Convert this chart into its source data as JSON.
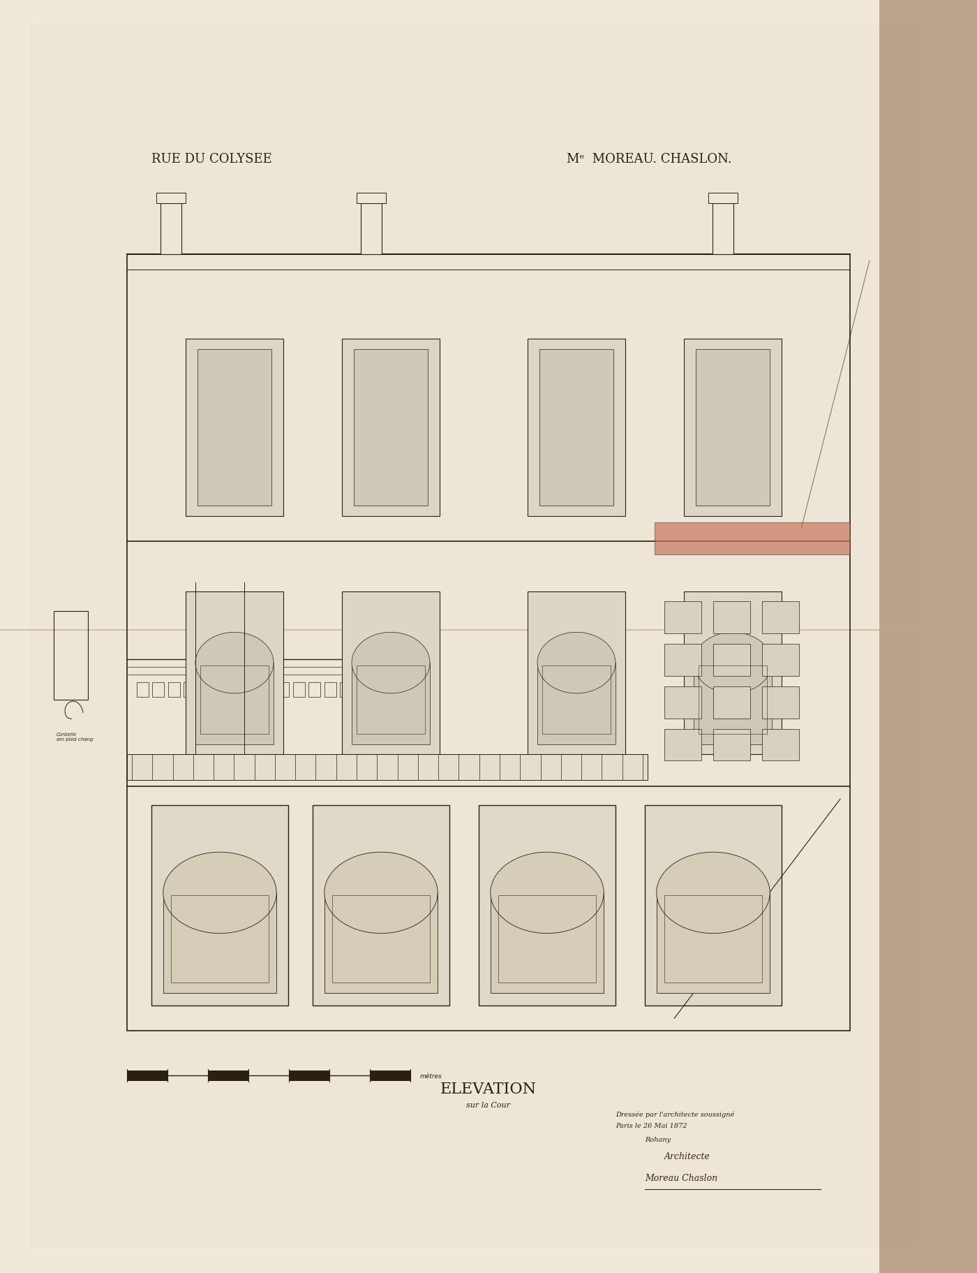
{
  "bg_color": "#f0e8d8",
  "paper_color": "#ede5d5",
  "line_color": "#2a1f10",
  "faint_line": "#8a7a65",
  "red_line": "#c07060",
  "title_left": "RUE DU COLYSEE",
  "title_right": "Mᵉ  MOREAU. CHASLON.",
  "subtitle_main": "ELEVATION",
  "subtitle_sub": "sur la Cour",
  "caption_line1": "Dressée par l'architecte soussigné",
  "caption_line2": "Paris le 26 Mai 1872",
  "caption_line3": "Rohany",
  "sig1": "Architecte",
  "sig2": "Moreau Chaslon",
  "scale_label": "mètres",
  "note_text": "Corbelle\nam pied chang"
}
